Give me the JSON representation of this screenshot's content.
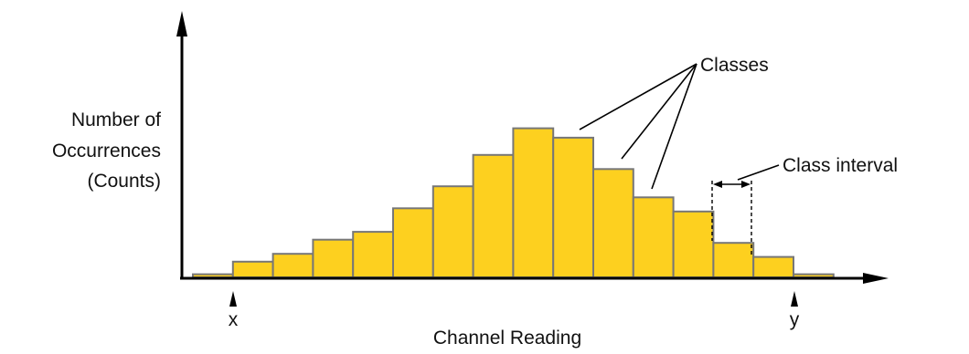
{
  "diagram": {
    "ylabel": [
      "Number of",
      "Occurrences",
      "(Counts)"
    ],
    "xlabel": "Channel Reading",
    "x_marker": "x",
    "y_marker": "y",
    "classes_label": "Classes",
    "class_interval_label": "Class interval"
  },
  "chart_data": {
    "type": "bar",
    "bar_color": "#FDD01F",
    "bar_outline_color": "#777777",
    "axis_color": "#000000",
    "counts": [
      2,
      10,
      15,
      24,
      29,
      44,
      58,
      78,
      95,
      89,
      69,
      51,
      42,
      22,
      13,
      2
    ]
  }
}
